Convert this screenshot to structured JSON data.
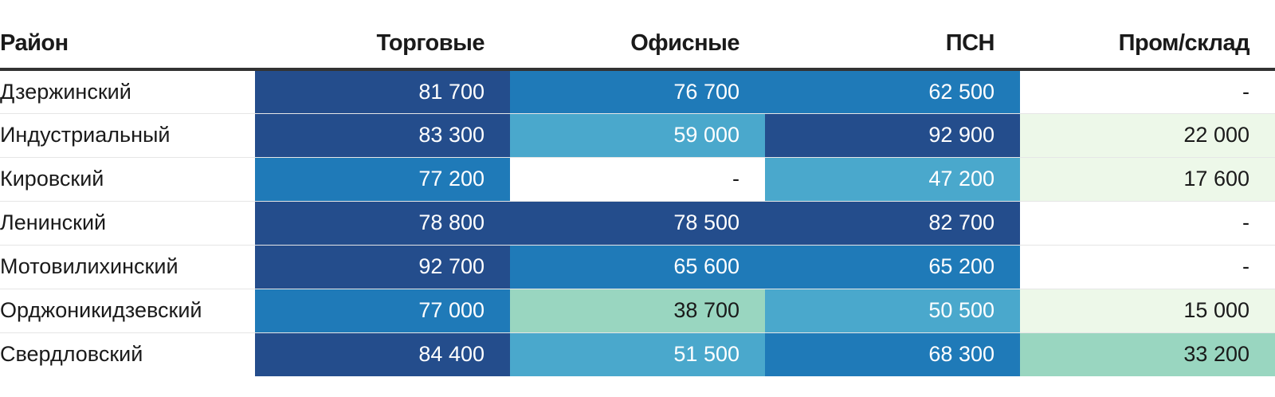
{
  "chart_data": {
    "type": "table",
    "columns": [
      "Район",
      "Торговые",
      "Офисные",
      "ПСН",
      "Пром/склад"
    ],
    "rows": [
      {
        "district": "Дзержинский",
        "cells": [
          "81 700",
          "76 700",
          "62 500",
          "-"
        ],
        "values": [
          81700,
          76700,
          62500,
          null
        ]
      },
      {
        "district": "Индустриальный",
        "cells": [
          "83 300",
          "59 000",
          "92 900",
          "22 000"
        ],
        "values": [
          83300,
          59000,
          92900,
          22000
        ]
      },
      {
        "district": "Кировский",
        "cells": [
          "77 200",
          "-",
          "47 200",
          "17 600"
        ],
        "values": [
          77200,
          null,
          47200,
          17600
        ]
      },
      {
        "district": "Ленинский",
        "cells": [
          "78 800",
          "78 500",
          "82 700",
          "-"
        ],
        "values": [
          78800,
          78500,
          82700,
          null
        ]
      },
      {
        "district": "Мотовилихинский",
        "cells": [
          "92 700",
          "65 600",
          "65 200",
          "-"
        ],
        "values": [
          92700,
          65600,
          65200,
          null
        ]
      },
      {
        "district": "Орджоникидзевский",
        "cells": [
          "77 000",
          "38 700",
          "50 500",
          "15 000"
        ],
        "values": [
          77000,
          38700,
          50500,
          15000
        ]
      },
      {
        "district": "Свердловский",
        "cells": [
          "84 400",
          "51 500",
          "68 300",
          "33 200"
        ],
        "values": [
          84400,
          51500,
          68300,
          33200
        ]
      }
    ],
    "color_scale": {
      "empty": "#ffffff",
      "level_1": "#edf8e9",
      "level_2": "#99d6c0",
      "level_3": "#4aa8cc",
      "level_4": "#1f7ab8",
      "level_5": "#244d8c",
      "text_dark": "#1a1a1a",
      "text_light": "#ffffff"
    }
  }
}
